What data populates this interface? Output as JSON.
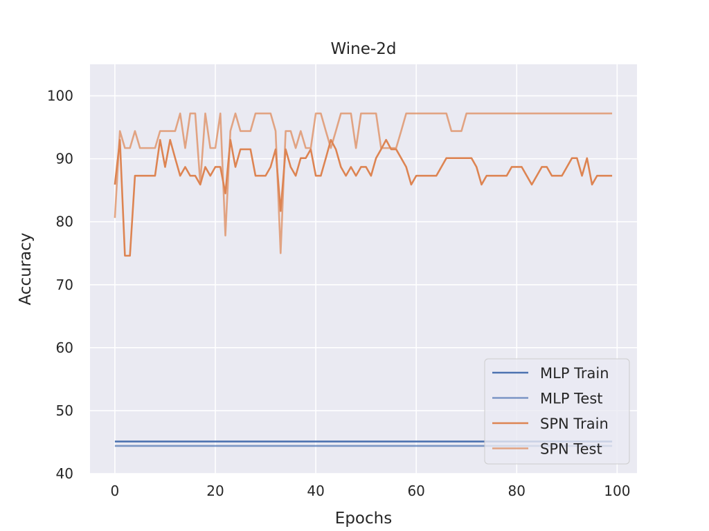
{
  "chart_data": {
    "type": "line",
    "title": "Wine-2d",
    "xlabel": "Epochs",
    "ylabel": "Accuracy",
    "xlim": [
      -4.95,
      103.95
    ],
    "ylim": [
      40,
      105
    ],
    "xticks": [
      0,
      20,
      40,
      60,
      80,
      100
    ],
    "yticks": [
      40,
      50,
      60,
      70,
      80,
      90,
      100
    ],
    "grid": true,
    "background_color": "#eaeaf2",
    "legend_position": "bottom-right",
    "x": [
      0,
      1,
      2,
      3,
      4,
      5,
      6,
      7,
      8,
      9,
      10,
      11,
      12,
      13,
      14,
      15,
      16,
      17,
      18,
      19,
      20,
      21,
      22,
      23,
      24,
      25,
      26,
      27,
      28,
      29,
      30,
      31,
      32,
      33,
      34,
      35,
      36,
      37,
      38,
      39,
      40,
      41,
      42,
      43,
      44,
      45,
      46,
      47,
      48,
      49,
      50,
      51,
      52,
      53,
      54,
      55,
      56,
      57,
      58,
      59,
      60,
      61,
      62,
      63,
      64,
      65,
      66,
      67,
      68,
      69,
      70,
      71,
      72,
      73,
      74,
      75,
      76,
      77,
      78,
      79,
      80,
      81,
      82,
      83,
      84,
      85,
      86,
      87,
      88,
      89,
      90,
      91,
      92,
      93,
      94,
      95,
      96,
      97,
      98,
      99
    ],
    "series": [
      {
        "name": "MLP Train",
        "color": "#4c72b0",
        "opacity": 1.0,
        "values": [
          45.1,
          45.1,
          45.1,
          45.1,
          45.1,
          45.1,
          45.1,
          45.1,
          45.1,
          45.1,
          45.1,
          45.1,
          45.1,
          45.1,
          45.1,
          45.1,
          45.1,
          45.1,
          45.1,
          45.1,
          45.1,
          45.1,
          45.1,
          45.1,
          45.1,
          45.1,
          45.1,
          45.1,
          45.1,
          45.1,
          45.1,
          45.1,
          45.1,
          45.1,
          45.1,
          45.1,
          45.1,
          45.1,
          45.1,
          45.1,
          45.1,
          45.1,
          45.1,
          45.1,
          45.1,
          45.1,
          45.1,
          45.1,
          45.1,
          45.1,
          45.1,
          45.1,
          45.1,
          45.1,
          45.1,
          45.1,
          45.1,
          45.1,
          45.1,
          45.1,
          45.1,
          45.1,
          45.1,
          45.1,
          45.1,
          45.1,
          45.1,
          45.1,
          45.1,
          45.1,
          45.1,
          45.1,
          45.1,
          45.1,
          45.1,
          45.1,
          45.1,
          45.1,
          45.1,
          45.1,
          45.1,
          45.1,
          45.1,
          45.1,
          45.1,
          45.1,
          45.1,
          45.1,
          45.1,
          45.1,
          45.1,
          45.1,
          45.1,
          45.1,
          45.1,
          45.1,
          45.1,
          45.1,
          45.1,
          45.1
        ]
      },
      {
        "name": "MLP Test",
        "color": "#4c72b0",
        "opacity": 0.7,
        "values": [
          44.4,
          44.4,
          44.4,
          44.4,
          44.4,
          44.4,
          44.4,
          44.4,
          44.4,
          44.4,
          44.4,
          44.4,
          44.4,
          44.4,
          44.4,
          44.4,
          44.4,
          44.4,
          44.4,
          44.4,
          44.4,
          44.4,
          44.4,
          44.4,
          44.4,
          44.4,
          44.4,
          44.4,
          44.4,
          44.4,
          44.4,
          44.4,
          44.4,
          44.4,
          44.4,
          44.4,
          44.4,
          44.4,
          44.4,
          44.4,
          44.4,
          44.4,
          44.4,
          44.4,
          44.4,
          44.4,
          44.4,
          44.4,
          44.4,
          44.4,
          44.4,
          44.4,
          44.4,
          44.4,
          44.4,
          44.4,
          44.4,
          44.4,
          44.4,
          44.4,
          44.4,
          44.4,
          44.4,
          44.4,
          44.4,
          44.4,
          44.4,
          44.4,
          44.4,
          44.4,
          44.4,
          44.4,
          44.4,
          44.4,
          44.4,
          44.4,
          44.4,
          44.4,
          44.4,
          44.4,
          44.4,
          44.4,
          44.4,
          44.4,
          44.4,
          44.4,
          44.4,
          44.4,
          44.4,
          44.4,
          44.4,
          44.4,
          44.4,
          44.4,
          44.4,
          44.4,
          44.4,
          44.4,
          44.4,
          44.4
        ]
      },
      {
        "name": "SPN Train",
        "color": "#dd8452",
        "opacity": 1.0,
        "values": [
          85.9,
          93.0,
          74.6,
          74.6,
          87.3,
          87.3,
          87.3,
          87.3,
          87.3,
          93.0,
          88.7,
          93.0,
          90.1,
          87.3,
          88.7,
          87.3,
          87.3,
          85.9,
          88.7,
          87.3,
          88.7,
          88.7,
          84.5,
          93.0,
          88.7,
          91.5,
          91.5,
          91.5,
          87.3,
          87.3,
          87.3,
          88.7,
          91.5,
          81.7,
          91.5,
          88.7,
          87.3,
          90.1,
          90.1,
          91.5,
          87.3,
          87.3,
          90.1,
          93.0,
          91.5,
          88.7,
          87.3,
          88.7,
          87.3,
          88.7,
          88.7,
          87.3,
          90.1,
          91.5,
          93.0,
          91.5,
          91.5,
          90.1,
          88.7,
          85.9,
          87.3,
          87.3,
          87.3,
          87.3,
          87.3,
          88.7,
          90.1,
          90.1,
          90.1,
          90.1,
          90.1,
          90.1,
          88.7,
          85.9,
          87.3,
          87.3,
          87.3,
          87.3,
          87.3,
          88.7,
          88.7,
          88.7,
          87.3,
          85.9,
          87.3,
          88.7,
          88.7,
          87.3,
          87.3,
          87.3,
          88.7,
          90.1,
          90.1,
          87.3,
          90.1,
          85.9,
          87.3,
          87.3,
          87.3,
          87.3
        ]
      },
      {
        "name": "SPN Test",
        "color": "#dd8452",
        "opacity": 0.7,
        "values": [
          80.6,
          94.4,
          91.7,
          91.7,
          94.4,
          91.7,
          91.7,
          91.7,
          91.7,
          94.4,
          94.4,
          94.4,
          94.4,
          97.2,
          91.7,
          97.2,
          97.2,
          86.1,
          97.2,
          91.7,
          91.7,
          97.2,
          77.8,
          94.4,
          97.2,
          94.4,
          94.4,
          94.4,
          97.2,
          97.2,
          97.2,
          97.2,
          94.4,
          75.0,
          94.4,
          94.4,
          91.7,
          94.4,
          91.7,
          91.7,
          97.2,
          97.2,
          94.4,
          91.7,
          94.4,
          97.2,
          97.2,
          97.2,
          91.7,
          97.2,
          97.2,
          97.2,
          97.2,
          91.7,
          91.7,
          91.7,
          91.7,
          94.4,
          97.2,
          97.2,
          97.2,
          97.2,
          97.2,
          97.2,
          97.2,
          97.2,
          97.2,
          94.4,
          94.4,
          94.4,
          97.2,
          97.2,
          97.2,
          97.2,
          97.2,
          97.2,
          97.2,
          97.2,
          97.2,
          97.2,
          97.2,
          97.2,
          97.2,
          97.2,
          97.2,
          97.2,
          97.2,
          97.2,
          97.2,
          97.2,
          97.2,
          97.2,
          97.2,
          97.2,
          97.2,
          97.2,
          97.2,
          97.2,
          97.2,
          97.2
        ]
      }
    ]
  }
}
